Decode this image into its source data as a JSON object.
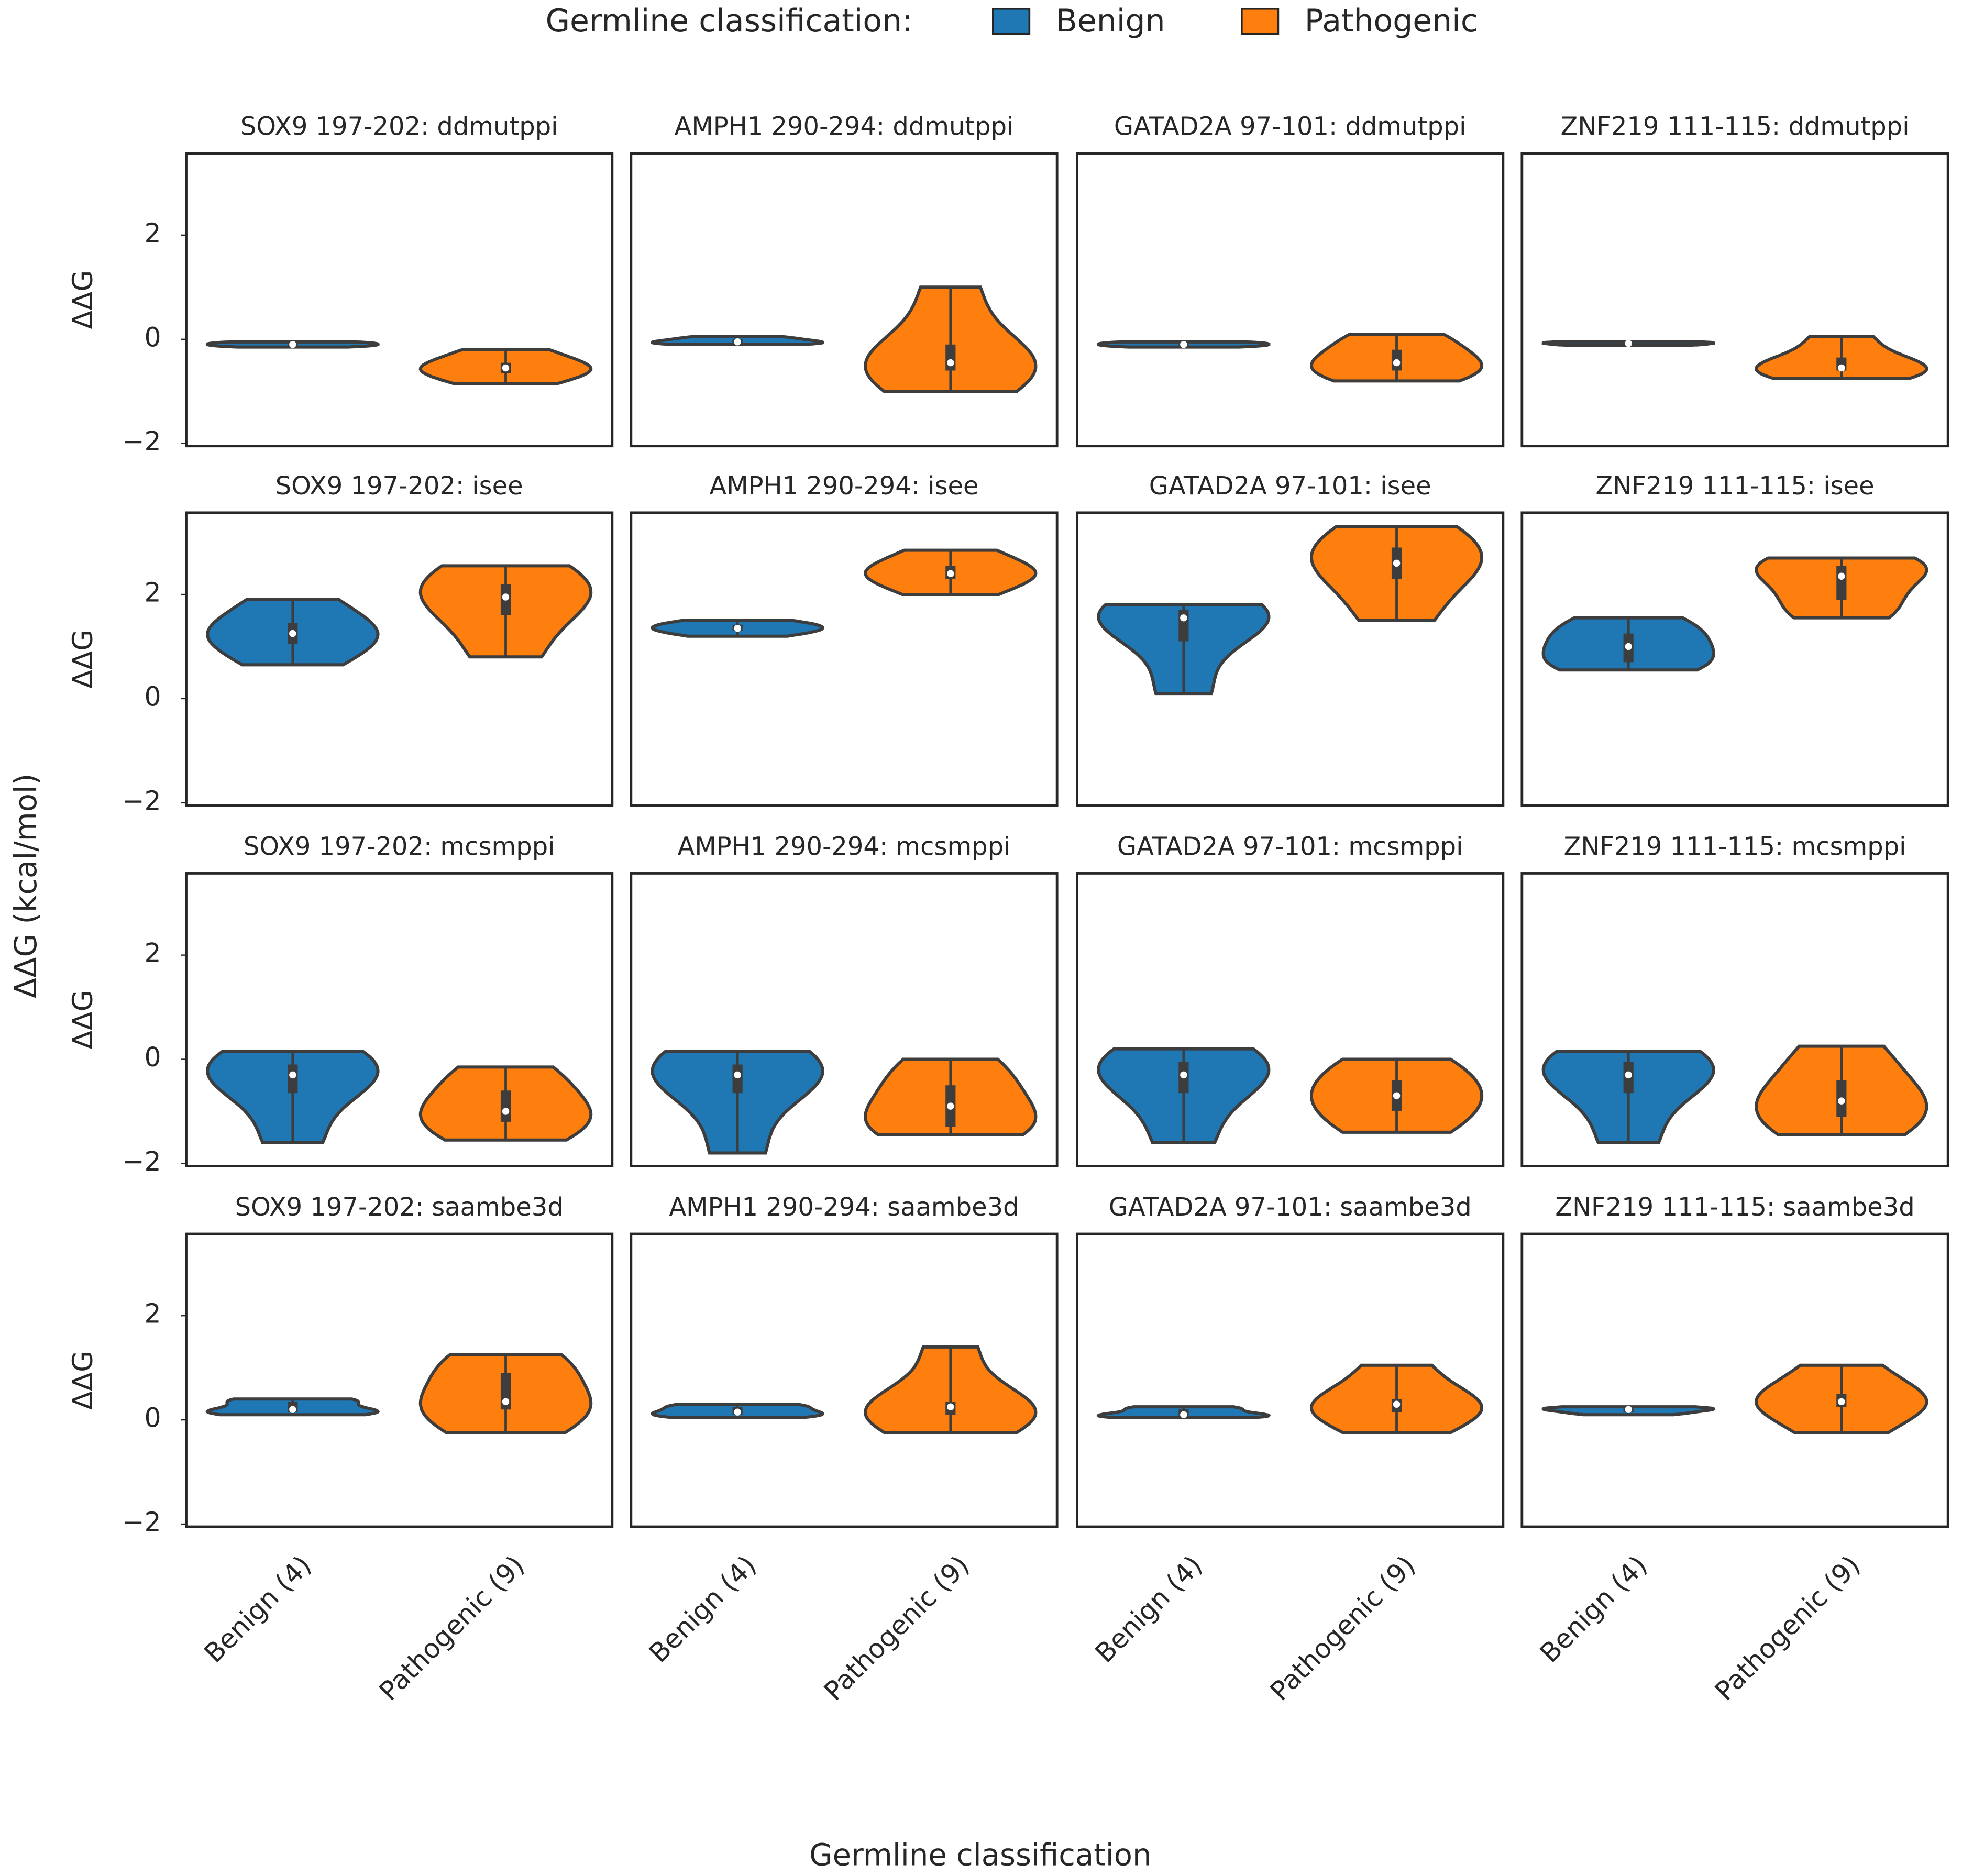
{
  "legend": {
    "title": "Germline classification:",
    "entries": [
      {
        "name": "Benign",
        "color": "#1f77b4"
      },
      {
        "name": "Pathogenic",
        "color": "#ff7f0e"
      }
    ]
  },
  "ylabel": "ΔΔG (kcal/mol)",
  "xlabel": "Germline classification",
  "chart_data": [
    {
      "type": "violin",
      "title": "SOX9 197-202: ddmutppi",
      "ylabel": "ΔΔG",
      "ylim": [
        -2.05,
        3.57
      ],
      "yticks": [
        {
          "value": -2,
          "label": "−2"
        },
        0,
        2
      ],
      "series": [
        {
          "color": "#1f77b4",
          "values": [
            -0.15,
            -0.12,
            -0.1,
            -0.07,
            -0.05
          ]
        },
        {
          "color": "#ff7f0e",
          "values": [
            -0.85,
            -0.65,
            -0.55,
            -0.45,
            -0.2
          ]
        }
      ]
    },
    {
      "type": "violin",
      "title": "AMPH1 290-294: ddmutppi",
      "ylim": [
        -2.05,
        3.57
      ],
      "yticks": [],
      "series": [
        {
          "color": "#1f77b4",
          "values": [
            -0.1,
            -0.07,
            -0.05,
            0.0,
            0.05
          ]
        },
        {
          "color": "#ff7f0e",
          "values": [
            -1.0,
            -0.6,
            -0.45,
            -0.1,
            1.0
          ]
        }
      ]
    },
    {
      "type": "violin",
      "title": "GATAD2A 97-101: ddmutppi",
      "ylim": [
        -2.05,
        3.57
      ],
      "yticks": [],
      "series": [
        {
          "color": "#1f77b4",
          "values": [
            -0.15,
            -0.12,
            -0.1,
            -0.07,
            -0.05
          ]
        },
        {
          "color": "#ff7f0e",
          "values": [
            -0.8,
            -0.6,
            -0.45,
            -0.2,
            0.1
          ]
        }
      ]
    },
    {
      "type": "violin",
      "title": "ZNF219 111-115: ddmutppi",
      "ylim": [
        -2.05,
        3.57
      ],
      "yticks": [],
      "series": [
        {
          "color": "#1f77b4",
          "values": [
            -0.12,
            -0.1,
            -0.08,
            -0.06,
            -0.05
          ]
        },
        {
          "color": "#ff7f0e",
          "values": [
            -0.75,
            -0.6,
            -0.55,
            -0.35,
            0.05
          ]
        }
      ]
    },
    {
      "type": "violin",
      "title": "SOX9 197-202: isee",
      "ylabel": "ΔΔG",
      "ylim": [
        -2.05,
        3.57
      ],
      "yticks": [
        {
          "value": -2,
          "label": "−2"
        },
        0,
        2
      ],
      "series": [
        {
          "color": "#1f77b4",
          "values": [
            0.65,
            1.05,
            1.25,
            1.45,
            1.9
          ]
        },
        {
          "color": "#ff7f0e",
          "values": [
            0.8,
            1.6,
            1.95,
            2.2,
            2.55
          ]
        }
      ]
    },
    {
      "type": "violin",
      "title": "AMPH1 290-294: isee",
      "ylim": [
        -2.05,
        3.57
      ],
      "yticks": [],
      "series": [
        {
          "color": "#1f77b4",
          "values": [
            1.2,
            1.3,
            1.35,
            1.42,
            1.5
          ]
        },
        {
          "color": "#ff7f0e",
          "values": [
            2.0,
            2.3,
            2.4,
            2.55,
            2.85
          ]
        }
      ]
    },
    {
      "type": "violin",
      "title": "GATAD2A 97-101: isee",
      "ylim": [
        -2.05,
        3.57
      ],
      "yticks": [],
      "series": [
        {
          "color": "#1f77b4",
          "values": [
            0.1,
            1.1,
            1.55,
            1.7,
            1.8
          ]
        },
        {
          "color": "#ff7f0e",
          "values": [
            1.5,
            2.3,
            2.6,
            2.9,
            3.3
          ]
        }
      ]
    },
    {
      "type": "violin",
      "title": "ZNF219 111-115: isee",
      "ylim": [
        -2.05,
        3.57
      ],
      "yticks": [],
      "series": [
        {
          "color": "#1f77b4",
          "values": [
            0.55,
            0.7,
            1.0,
            1.25,
            1.55
          ]
        },
        {
          "color": "#ff7f0e",
          "values": [
            1.55,
            1.9,
            2.35,
            2.55,
            2.7
          ]
        }
      ]
    },
    {
      "type": "violin",
      "title": "SOX9 197-202: mcsmppi",
      "ylabel": "ΔΔG",
      "ylim": [
        -2.05,
        3.57
      ],
      "yticks": [
        {
          "value": -2,
          "label": "−2"
        },
        0,
        2
      ],
      "series": [
        {
          "color": "#1f77b4",
          "values": [
            -1.6,
            -0.65,
            -0.3,
            -0.1,
            0.15
          ]
        },
        {
          "color": "#ff7f0e",
          "values": [
            -1.55,
            -1.2,
            -1.0,
            -0.6,
            -0.15
          ]
        }
      ]
    },
    {
      "type": "violin",
      "title": "AMPH1 290-294: mcsmppi",
      "ylim": [
        -2.05,
        3.57
      ],
      "yticks": [],
      "series": [
        {
          "color": "#1f77b4",
          "values": [
            -1.8,
            -0.65,
            -0.3,
            -0.1,
            0.15
          ]
        },
        {
          "color": "#ff7f0e",
          "values": [
            -1.45,
            -1.3,
            -0.9,
            -0.5,
            0.0
          ]
        }
      ]
    },
    {
      "type": "violin",
      "title": "GATAD2A 97-101: mcsmppi",
      "ylim": [
        -2.05,
        3.57
      ],
      "yticks": [],
      "series": [
        {
          "color": "#1f77b4",
          "values": [
            -1.6,
            -0.65,
            -0.3,
            -0.05,
            0.2
          ]
        },
        {
          "color": "#ff7f0e",
          "values": [
            -1.4,
            -1.0,
            -0.7,
            -0.4,
            0.0
          ]
        }
      ]
    },
    {
      "type": "violin",
      "title": "ZNF219 111-115: mcsmppi",
      "ylim": [
        -2.05,
        3.57
      ],
      "yticks": [],
      "series": [
        {
          "color": "#1f77b4",
          "values": [
            -1.6,
            -0.65,
            -0.3,
            -0.05,
            0.15
          ]
        },
        {
          "color": "#ff7f0e",
          "values": [
            -1.45,
            -1.1,
            -0.8,
            -0.4,
            0.25
          ]
        }
      ]
    },
    {
      "type": "violin",
      "title": "SOX9 197-202: saambe3d",
      "ylabel": "ΔΔG",
      "ylim": [
        -2.05,
        3.57
      ],
      "yticks": [
        {
          "value": -2,
          "label": "−2"
        },
        0,
        2
      ],
      "categories": [
        "Benign (4)",
        "Pathogenic (9)"
      ],
      "series": [
        {
          "color": "#1f77b4",
          "values": [
            0.1,
            0.15,
            0.2,
            0.35,
            0.4
          ]
        },
        {
          "color": "#ff7f0e",
          "values": [
            -0.25,
            0.2,
            0.35,
            0.9,
            1.25
          ]
        }
      ]
    },
    {
      "type": "violin",
      "title": "AMPH1 290-294: saambe3d",
      "ylim": [
        -2.05,
        3.57
      ],
      "yticks": [],
      "categories": [
        "Benign (4)",
        "Pathogenic (9)"
      ],
      "series": [
        {
          "color": "#1f77b4",
          "values": [
            0.05,
            0.1,
            0.15,
            0.25,
            0.3
          ]
        },
        {
          "color": "#ff7f0e",
          "values": [
            -0.25,
            0.1,
            0.25,
            0.35,
            1.4
          ]
        }
      ]
    },
    {
      "type": "violin",
      "title": "GATAD2A 97-101: saambe3d",
      "ylim": [
        -2.05,
        3.57
      ],
      "yticks": [],
      "categories": [
        "Benign (4)",
        "Pathogenic (9)"
      ],
      "series": [
        {
          "color": "#1f77b4",
          "values": [
            0.05,
            0.08,
            0.1,
            0.2,
            0.25
          ]
        },
        {
          "color": "#ff7f0e",
          "values": [
            -0.25,
            0.15,
            0.3,
            0.4,
            1.05
          ]
        }
      ]
    },
    {
      "type": "violin",
      "title": "ZNF219 111-115: saambe3d",
      "ylim": [
        -2.05,
        3.57
      ],
      "yticks": [],
      "categories": [
        "Benign (4)",
        "Pathogenic (9)"
      ],
      "series": [
        {
          "color": "#1f77b4",
          "values": [
            0.1,
            0.15,
            0.2,
            0.22,
            0.25
          ]
        },
        {
          "color": "#ff7f0e",
          "values": [
            -0.25,
            0.25,
            0.35,
            0.5,
            1.05
          ]
        }
      ]
    }
  ]
}
